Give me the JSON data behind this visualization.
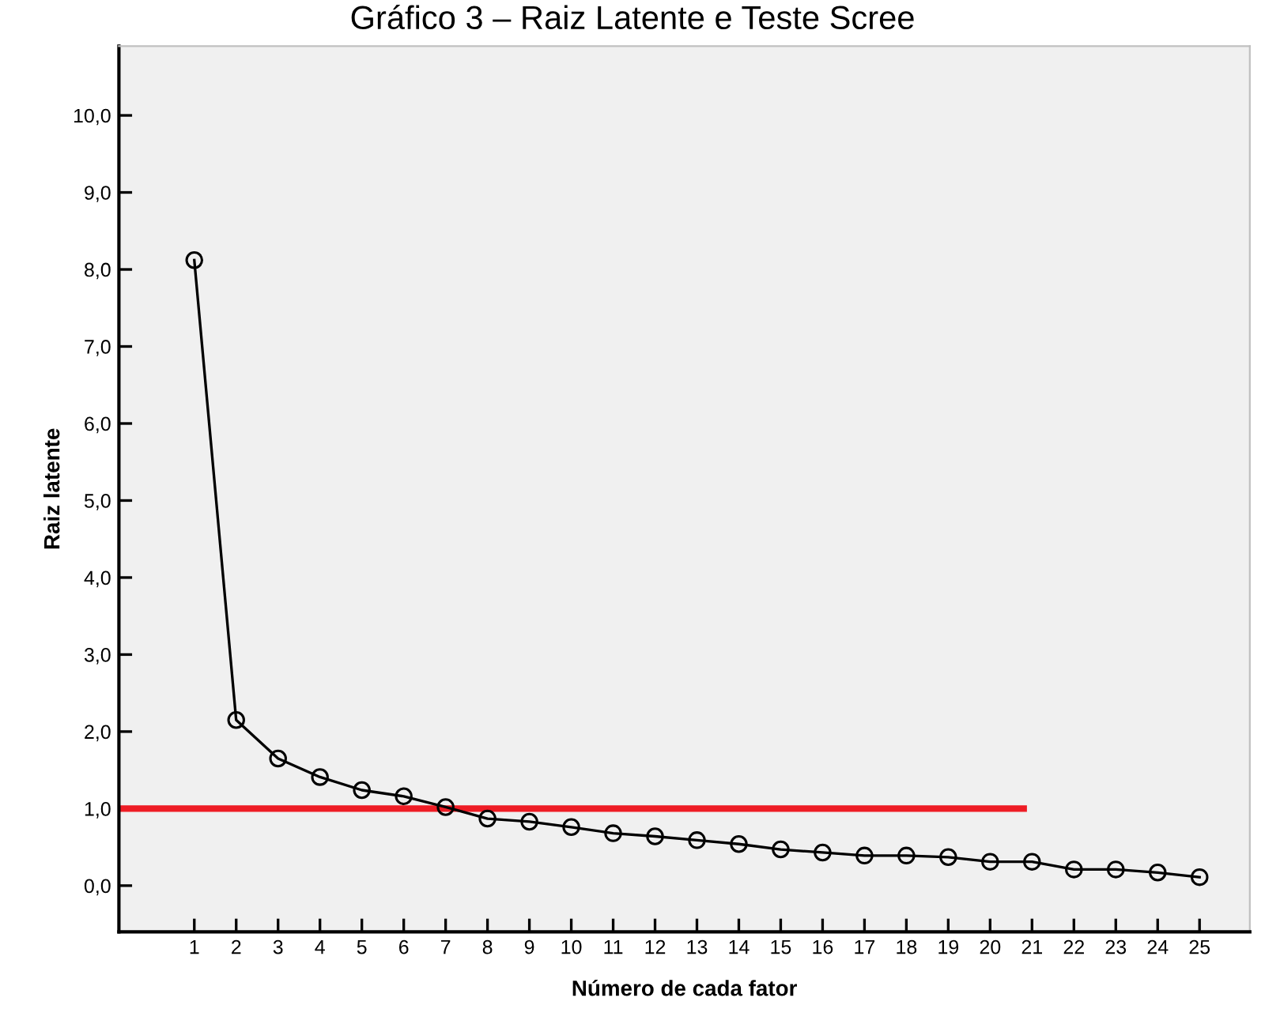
{
  "chart_data": {
    "type": "line",
    "title": "Gráfico 3 – Raiz Latente e Teste Scree",
    "xlabel": "Número de cada fator",
    "ylabel": "Raiz latente",
    "xlim": [
      -0.8,
      26.2
    ],
    "xticks": [
      1,
      2,
      3,
      4,
      5,
      6,
      7,
      8,
      9,
      10,
      11,
      12,
      13,
      14,
      15,
      16,
      17,
      18,
      19,
      20,
      21,
      22,
      23,
      24,
      25
    ],
    "ylim": [
      -0.6,
      10.9
    ],
    "yticks": [
      {
        "value": 0,
        "label": "0,0"
      },
      {
        "value": 1,
        "label": "1,0"
      },
      {
        "value": 2,
        "label": "2,0"
      },
      {
        "value": 3,
        "label": "3,0"
      },
      {
        "value": 4,
        "label": "4,0"
      },
      {
        "value": 5,
        "label": "5,0"
      },
      {
        "value": 6,
        "label": "6,0"
      },
      {
        "value": 7,
        "label": "7,0"
      },
      {
        "value": 8,
        "label": "8,0"
      },
      {
        "value": 9,
        "label": "9,0"
      },
      {
        "value": 10,
        "label": "10,0"
      }
    ],
    "grid": false,
    "legend": false,
    "series": [
      {
        "color": "#000000",
        "marker": "circle",
        "x": [
          1,
          2,
          3,
          4,
          5,
          6,
          7,
          8,
          9,
          10,
          11,
          12,
          13,
          14,
          15,
          16,
          17,
          18,
          19,
          20,
          21,
          22,
          23,
          24,
          25
        ],
        "values": [
          8.12,
          2.15,
          1.65,
          1.41,
          1.24,
          1.16,
          1.02,
          0.87,
          0.83,
          0.76,
          0.68,
          0.64,
          0.59,
          0.54,
          0.47,
          0.43,
          0.39,
          0.39,
          0.37,
          0.31,
          0.31,
          0.21,
          0.21,
          0.17,
          0.11
        ]
      },
      {
        "color": "#ee1c25",
        "marker": "none",
        "x": [
          -0.8,
          20.8
        ],
        "values": [
          1,
          1
        ]
      }
    ]
  }
}
